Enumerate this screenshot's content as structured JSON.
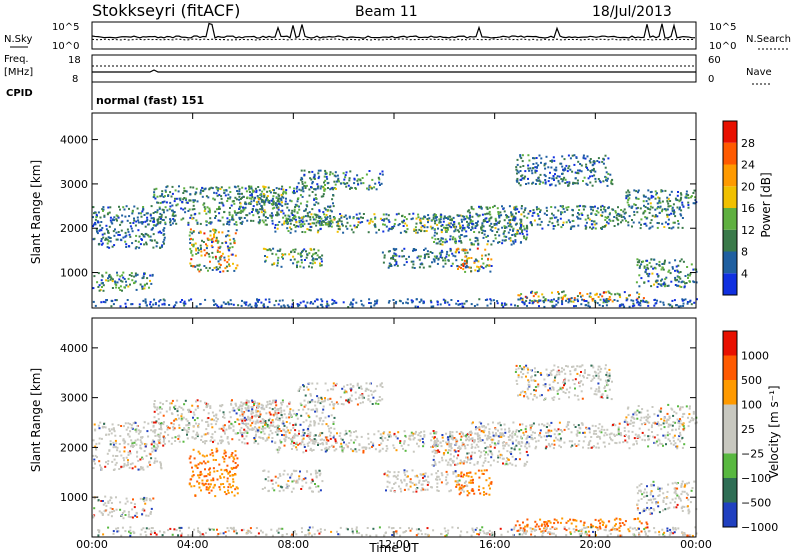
{
  "header": {
    "station": "Stokkseyri (fitACF)",
    "beam": "Beam 11",
    "date": "18/Jul/2013"
  },
  "top_panel": {
    "left_label": "N.Sky",
    "right_label": "N.Search",
    "ticks": [
      "10^5",
      "10^0"
    ]
  },
  "freq_panel": {
    "left_label_1": "Freq.",
    "left_label_2": "[MHz]",
    "left_ticks": [
      "18",
      "8"
    ],
    "right_label": "Nave",
    "right_ticks": [
      "60",
      "0"
    ],
    "cpid_label": "CPID",
    "cpid_value": "normal (fast) 151"
  },
  "colors": {
    "power": [
      "#1030e0",
      "#1f5fa0",
      "#3a7a4a",
      "#5fb040",
      "#f0c000",
      "#ff9a00",
      "#ff5a00",
      "#e81000"
    ],
    "velocity": [
      "#2040c0",
      "#2f6e55",
      "#58b840",
      "#c8c8c0",
      "#c8c8c0",
      "#ff9a00",
      "#ff5a00",
      "#e81000"
    ]
  },
  "chart_data": [
    {
      "type": "heatmap",
      "name": "power",
      "ylabel": "Slant Range [km]",
      "xlabel": "",
      "yticks": [
        "1000",
        "2000",
        "3000",
        "4000"
      ],
      "ylim": [
        200,
        4600
      ],
      "colorbar_label": "Power [dB]",
      "colorbar_ticks": [
        "4",
        "8",
        "12",
        "16",
        "20",
        "24",
        "28"
      ],
      "range": [
        0,
        32
      ]
    },
    {
      "type": "heatmap",
      "name": "velocity",
      "ylabel": "Slant Range [km]",
      "xlabel": "Time UT",
      "xticks": [
        "00:00",
        "04:00",
        "08:00",
        "12:00",
        "16:00",
        "20:00",
        "00:00"
      ],
      "yticks": [
        "1000",
        "2000",
        "3000",
        "4000"
      ],
      "ylim": [
        200,
        4600
      ],
      "colorbar_label": "Velocity [m s⁻¹]",
      "colorbar_ticks": [
        "1000",
        "500",
        "100",
        "25",
        "−25",
        "−100",
        "−500",
        "−1000"
      ]
    }
  ]
}
